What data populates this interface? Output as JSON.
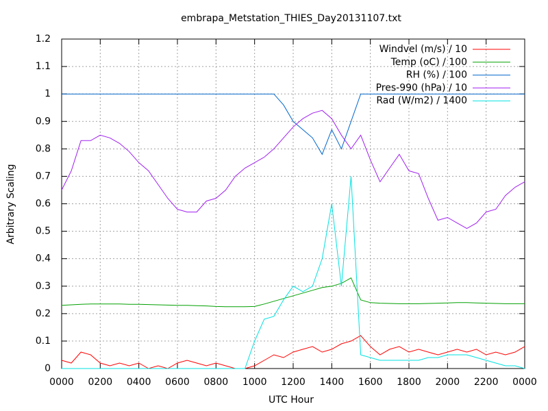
{
  "chart_data": {
    "type": "line",
    "title": "embrapa_Metstation_THIES_Day20131107.txt",
    "xlabel": "UTC Hour",
    "ylabel": "Arbitrary Scaling",
    "x": [
      0,
      0.5,
      1,
      1.5,
      2,
      2.5,
      3,
      3.5,
      4,
      4.5,
      5,
      5.5,
      6,
      6.5,
      7,
      7.5,
      8,
      8.5,
      9,
      9.5,
      10,
      10.5,
      11,
      11.5,
      12,
      12.5,
      13,
      13.5,
      14,
      14.5,
      15,
      15.5,
      16,
      16.5,
      17,
      17.5,
      18,
      18.5,
      19,
      19.5,
      20,
      20.5,
      21,
      21.5,
      22,
      22.5,
      23,
      23.5,
      24
    ],
    "series": [
      {
        "name": "Windvel (m/s) / 10",
        "color": "#ff0000",
        "values": [
          0.03,
          0.02,
          0.06,
          0.05,
          0.02,
          0.01,
          0.02,
          0.01,
          0.02,
          0,
          0.01,
          0,
          0.02,
          0.03,
          0.02,
          0.01,
          0.02,
          0.01,
          0,
          0,
          0.01,
          0.03,
          0.05,
          0.04,
          0.06,
          0.07,
          0.08,
          0.06,
          0.07,
          0.09,
          0.1,
          0.12,
          0.08,
          0.05,
          0.07,
          0.08,
          0.06,
          0.07,
          0.06,
          0.05,
          0.06,
          0.07,
          0.06,
          0.07,
          0.05,
          0.06,
          0.05,
          0.06,
          0.08
        ]
      },
      {
        "name": "Temp (oC) / 100",
        "color": "#00a000",
        "values": [
          0.23,
          0.232,
          0.234,
          0.235,
          0.235,
          0.235,
          0.235,
          0.234,
          0.234,
          0.233,
          0.232,
          0.231,
          0.23,
          0.23,
          0.229,
          0.228,
          0.226,
          0.225,
          0.225,
          0.225,
          0.226,
          0.235,
          0.245,
          0.255,
          0.265,
          0.275,
          0.285,
          0.295,
          0.3,
          0.31,
          0.33,
          0.25,
          0.24,
          0.238,
          0.237,
          0.236,
          0.236,
          0.236,
          0.237,
          0.238,
          0.239,
          0.24,
          0.24,
          0.239,
          0.238,
          0.237,
          0.236,
          0.236,
          0.236
        ]
      },
      {
        "name": "RH (%) / 100",
        "color": "#0066cc",
        "values": [
          1,
          1,
          1,
          1,
          1,
          1,
          1,
          1,
          1,
          1,
          1,
          1,
          1,
          1,
          1,
          1,
          1,
          1,
          1,
          1,
          1,
          1,
          1,
          0.96,
          0.9,
          0.87,
          0.84,
          0.78,
          0.87,
          0.8,
          0.9,
          1,
          1,
          1,
          1,
          1,
          1,
          1,
          1,
          1,
          1,
          1,
          1,
          1,
          1,
          1,
          1,
          1,
          1
        ]
      },
      {
        "name": "Pres-990 (hPa) / 10",
        "color": "#a020f0",
        "values": [
          0.65,
          0.72,
          0.83,
          0.83,
          0.85,
          0.84,
          0.82,
          0.79,
          0.75,
          0.72,
          0.67,
          0.62,
          0.58,
          0.57,
          0.57,
          0.61,
          0.62,
          0.65,
          0.7,
          0.73,
          0.75,
          0.77,
          0.8,
          0.84,
          0.88,
          0.91,
          0.93,
          0.94,
          0.91,
          0.85,
          0.8,
          0.85,
          0.76,
          0.68,
          0.73,
          0.78,
          0.72,
          0.71,
          0.62,
          0.54,
          0.55,
          0.53,
          0.51,
          0.53,
          0.57,
          0.58,
          0.63,
          0.66,
          0.68
        ]
      },
      {
        "name": "Rad (W/m2) / 1400",
        "color": "#00e0e0",
        "values": [
          0,
          0,
          0,
          0,
          0,
          0,
          0,
          0,
          0,
          0,
          0,
          0,
          0,
          0,
          0,
          0,
          0,
          0,
          0,
          0,
          0.1,
          0.18,
          0.19,
          0.25,
          0.3,
          0.28,
          0.3,
          0.4,
          0.6,
          0.3,
          0.7,
          0.05,
          0.04,
          0.03,
          0.03,
          0.03,
          0.03,
          0.03,
          0.04,
          0.04,
          0.05,
          0.05,
          0.05,
          0.04,
          0.03,
          0.02,
          0.01,
          0.01,
          0
        ]
      }
    ],
    "xlim": [
      0,
      24
    ],
    "xticks": [
      {
        "value": 0,
        "label": "0000"
      },
      {
        "value": 2,
        "label": "0200"
      },
      {
        "value": 4,
        "label": "0400"
      },
      {
        "value": 6,
        "label": "0600"
      },
      {
        "value": 8,
        "label": "0800"
      },
      {
        "value": 10,
        "label": "1000"
      },
      {
        "value": 12,
        "label": "1200"
      },
      {
        "value": 14,
        "label": "1400"
      },
      {
        "value": 16,
        "label": "1600"
      },
      {
        "value": 18,
        "label": "1800"
      },
      {
        "value": 20,
        "label": "2000"
      },
      {
        "value": 22,
        "label": "2200"
      },
      {
        "value": 24,
        "label": "0000"
      }
    ],
    "ylim": [
      0,
      1.2
    ],
    "yticks": [
      0,
      0.1,
      0.2,
      0.3,
      0.4,
      0.5,
      0.6,
      0.7,
      0.8,
      0.9,
      1,
      1.1,
      1.2
    ],
    "grid": true,
    "legend": "top-right"
  }
}
